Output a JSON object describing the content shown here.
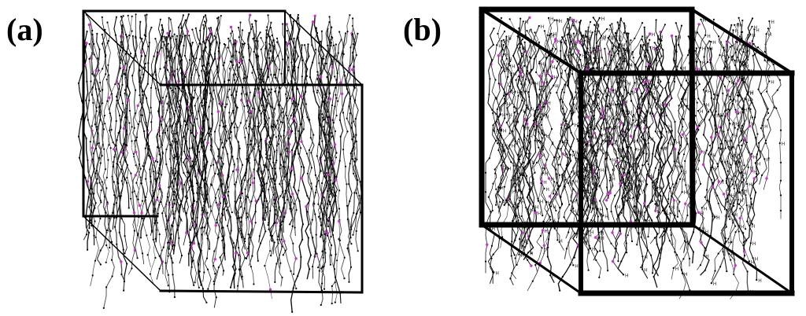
{
  "panels": [
    {
      "id": "a",
      "label": "(a)",
      "atom_label": ""
    },
    {
      "id": "b",
      "label": "(b)",
      "atom_label": "H"
    }
  ],
  "colors": {
    "background": "#ffffff",
    "cell_edge": "#000000",
    "chain_bond": "#111111",
    "chain_bond_light": "#555555",
    "atom_highlight": "#cc33cc"
  }
}
